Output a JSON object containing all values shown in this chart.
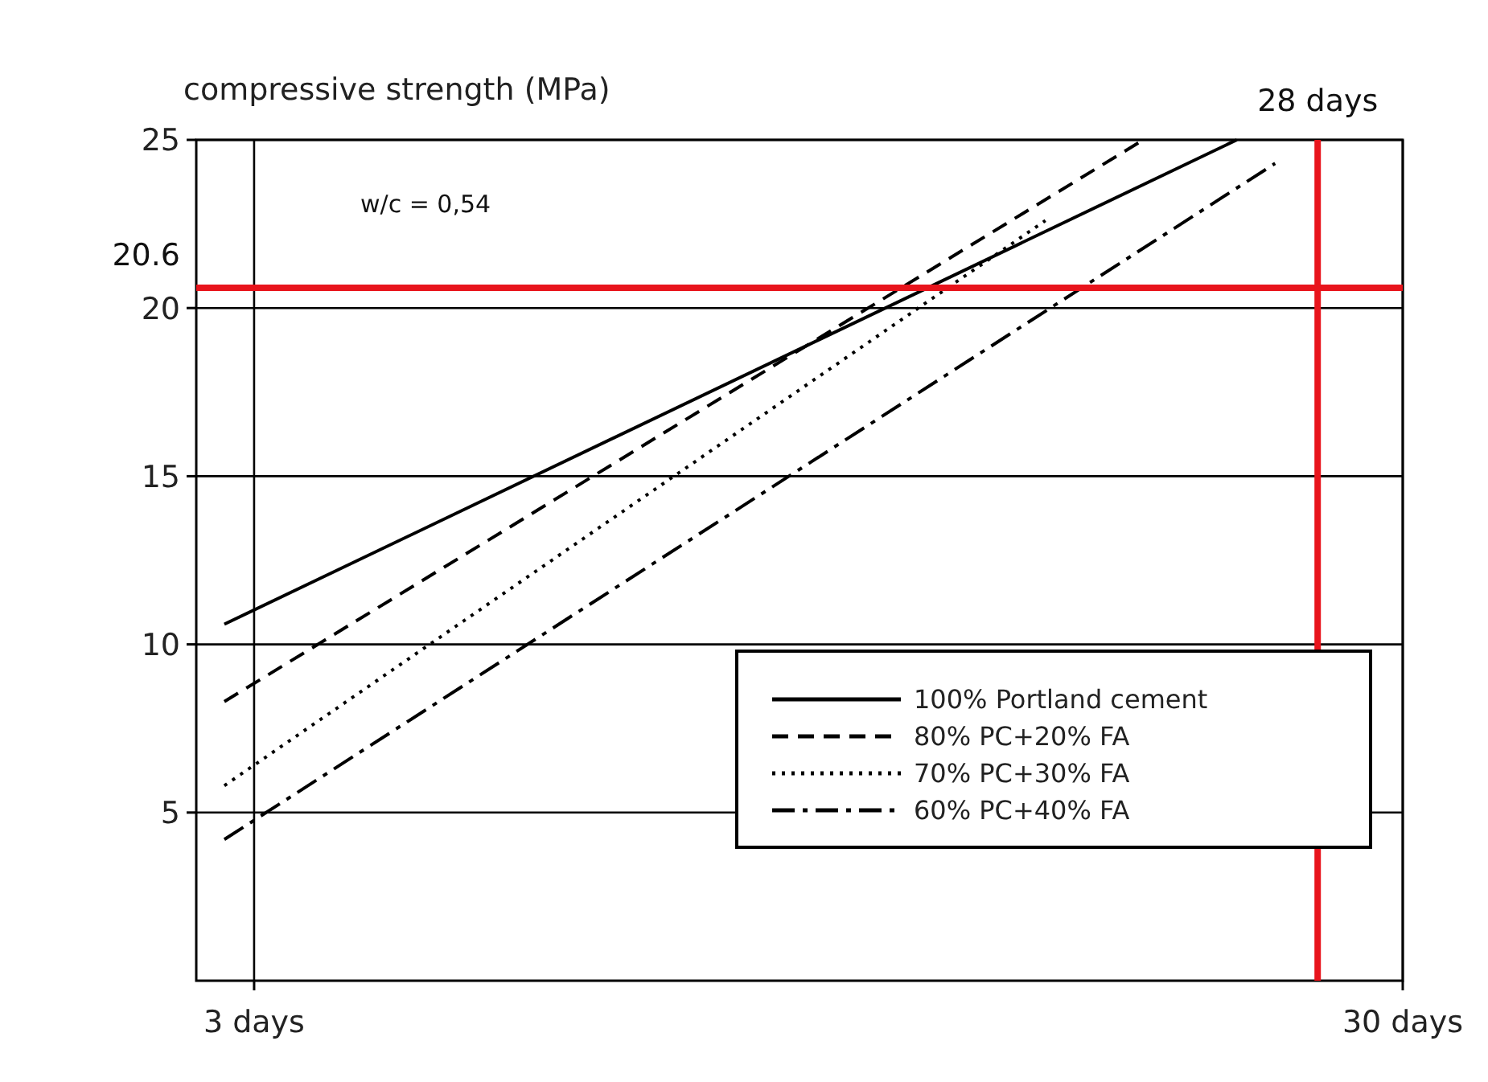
{
  "chart_data": {
    "type": "line",
    "ylabel": "compressive strength (MPa)",
    "xlim": [
      1.64,
      30
    ],
    "xticks": [
      {
        "value": 3,
        "label": "3 days"
      },
      {
        "value": 30,
        "label": "30 days"
      }
    ],
    "ylim": [
      0,
      25
    ],
    "yticks": [
      5,
      10,
      15,
      20,
      25
    ],
    "grid": true,
    "legend": "bottom right",
    "series": [
      {
        "name": "100% Portland cement",
        "color": "#000000",
        "line_style": "solid",
        "x": [
          2.3,
          26.1
        ],
        "values": [
          10.6,
          25
        ]
      },
      {
        "name": "80% PC+20% FA",
        "color": "#000000",
        "line_style": "dashed",
        "x": [
          2.3,
          23.9
        ],
        "values": [
          8.3,
          25
        ]
      },
      {
        "name": "70% PC+30% FA",
        "color": "#000000",
        "line_style": "dotted",
        "x": [
          2.3,
          21.6
        ],
        "values": [
          5.8,
          22.6
        ]
      },
      {
        "name": "60% PC+40% FA",
        "color": "#000000",
        "line_style": "dashdot",
        "x": [
          2.3,
          27
        ],
        "values": [
          4.2,
          24.3
        ]
      }
    ],
    "ref_lines": [
      {
        "axis": "y",
        "value": 20.6,
        "label": "20.6",
        "color": "#e8141c"
      },
      {
        "axis": "x",
        "value": 28,
        "label": "28 days",
        "color": "#e8141c"
      }
    ],
    "annotations": [
      "w/c = 0,54"
    ]
  }
}
